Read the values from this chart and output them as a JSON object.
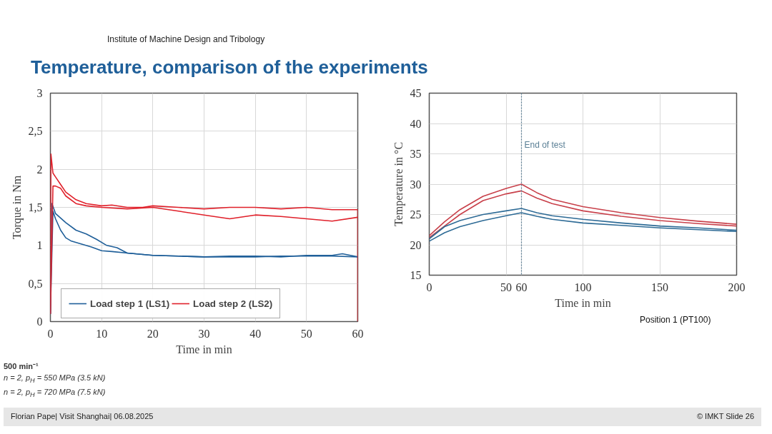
{
  "chart_data": [
    {
      "type": "line",
      "title": "Temperature, comparison of the experiments",
      "subtitle": "Institute of Machine Design and Tribology",
      "xlabel": "Time in min",
      "ylabel": "Torque in Nm",
      "xlim": [
        0,
        60
      ],
      "ylim": [
        0,
        3
      ],
      "xticks": [
        0,
        10,
        20,
        30,
        40,
        50,
        60
      ],
      "yticks": [
        0,
        {
          "value": 0.5,
          "label": "0,5"
        },
        1,
        {
          "value": 1.5,
          "label": "1,5"
        },
        2,
        {
          "value": 2.5,
          "label": "2,5"
        },
        3
      ],
      "grid": true,
      "legend": "bottom left",
      "series": [
        {
          "name": "Load step 1 (LS1)",
          "color": "#1f5f99",
          "x": [
            0,
            0.3,
            1,
            3,
            5,
            7,
            9,
            11,
            13,
            15,
            20,
            25,
            30,
            35,
            40,
            45,
            50,
            55,
            57,
            60
          ],
          "values": [
            0.1,
            1.55,
            1.42,
            1.3,
            1.2,
            1.15,
            1.08,
            1.0,
            0.97,
            0.9,
            0.87,
            0.86,
            0.85,
            0.86,
            0.86,
            0.85,
            0.87,
            0.87,
            0.89,
            0.85
          ]
        },
        {
          "color": "#1f5f99",
          "x": [
            0,
            0.5,
            1,
            2,
            3,
            4,
            6,
            8,
            10,
            12,
            15,
            20,
            25,
            30,
            35,
            40,
            45,
            50,
            55,
            60
          ],
          "values": [
            0.1,
            1.45,
            1.35,
            1.2,
            1.1,
            1.06,
            1.02,
            0.98,
            0.93,
            0.92,
            0.9,
            0.87,
            0.86,
            0.85,
            0.85,
            0.85,
            0.86,
            0.86,
            0.86,
            0.85
          ]
        },
        {
          "name": "Load step 2 (LS2)",
          "color": "#e0202a",
          "x": [
            0,
            0.1,
            0.5,
            1,
            2,
            3,
            5,
            7,
            10,
            12,
            15,
            18,
            20,
            25,
            30,
            35,
            40,
            45,
            50,
            55,
            60,
            60
          ],
          "values": [
            0.1,
            2.2,
            1.95,
            1.9,
            1.8,
            1.7,
            1.6,
            1.55,
            1.52,
            1.53,
            1.5,
            1.5,
            1.52,
            1.5,
            1.48,
            1.5,
            1.5,
            1.48,
            1.5,
            1.47,
            1.47,
            0
          ]
        },
        {
          "color": "#e0202a",
          "x": [
            0,
            0.5,
            1,
            2,
            3,
            5,
            7,
            10,
            15,
            20,
            25,
            30,
            35,
            40,
            45,
            50,
            55,
            60
          ],
          "values": [
            0.1,
            1.78,
            1.78,
            1.75,
            1.65,
            1.55,
            1.52,
            1.5,
            1.48,
            1.5,
            1.45,
            1.4,
            1.35,
            1.4,
            1.38,
            1.35,
            1.32,
            1.37
          ]
        }
      ],
      "annotations": [
        "500 min⁻¹",
        "n = 2, p$_{H}$ = 550 MPa (3.5 kN)",
        "n = 2, p$_{H}$ = 720 MPa (7.5 kN)"
      ]
    },
    {
      "type": "line",
      "xlabel": "Time in min",
      "ylabel": "Temperature in °C",
      "xlim": [
        0,
        200
      ],
      "ylim": [
        15,
        45
      ],
      "xticks": [
        0,
        50,
        60,
        100,
        150,
        200
      ],
      "yticks": [
        15,
        20,
        25,
        30,
        35,
        40,
        45
      ],
      "grid": true,
      "ref_lines": [
        {
          "axis": "x",
          "value": 60,
          "label": "End of test",
          "color": "#5a7f95",
          "line_style": "dotted"
        }
      ],
      "series": [
        {
          "color": "#c8404a",
          "x": [
            0,
            10,
            20,
            35,
            50,
            60,
            70,
            80,
            100,
            125,
            150,
            175,
            200
          ],
          "values": [
            21.5,
            23.8,
            25.8,
            28,
            29.3,
            30,
            28.6,
            27.5,
            26.3,
            25.3,
            24.5,
            23.9,
            23.4
          ]
        },
        {
          "color": "#c8404a",
          "x": [
            0,
            10,
            20,
            35,
            50,
            60,
            70,
            80,
            100,
            125,
            150,
            175,
            200
          ],
          "values": [
            21.2,
            23.1,
            25,
            27.3,
            28.4,
            28.9,
            27.7,
            26.8,
            25.6,
            24.7,
            24,
            23.5,
            23.1
          ]
        },
        {
          "color": "#2e6b96",
          "x": [
            0,
            10,
            20,
            35,
            50,
            60,
            70,
            80,
            100,
            125,
            150,
            175,
            200
          ],
          "values": [
            21,
            23,
            24,
            25,
            25.6,
            26,
            25.3,
            24.8,
            24.2,
            23.6,
            23.1,
            22.8,
            22.4
          ]
        },
        {
          "color": "#2e6b96",
          "x": [
            0,
            10,
            20,
            35,
            50,
            60,
            70,
            80,
            100,
            125,
            150,
            175,
            200
          ],
          "values": [
            20.6,
            22,
            23,
            24,
            24.8,
            25.3,
            24.7,
            24.2,
            23.6,
            23.2,
            22.8,
            22.5,
            22.2
          ]
        }
      ],
      "annotations": [
        "Position 1 (PT100)",
        "Florian Pape| Visit Shanghai| 06.08.2025",
        "© IMKT Slide 26"
      ]
    }
  ]
}
